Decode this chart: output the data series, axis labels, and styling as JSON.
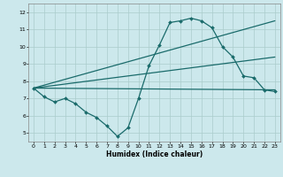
{
  "xlabel": "Humidex (Indice chaleur)",
  "bg_color": "#cce8ec",
  "grid_color": "#aacccc",
  "line_color": "#1a6b6b",
  "xlim": [
    -0.5,
    23.5
  ],
  "ylim": [
    4.5,
    12.5
  ],
  "xticks": [
    0,
    1,
    2,
    3,
    4,
    5,
    6,
    7,
    8,
    9,
    10,
    11,
    12,
    13,
    14,
    15,
    16,
    17,
    18,
    19,
    20,
    21,
    22,
    23
  ],
  "yticks": [
    5,
    6,
    7,
    8,
    9,
    10,
    11,
    12
  ],
  "main_line": {
    "x": [
      0,
      1,
      2,
      3,
      4,
      5,
      6,
      7,
      8,
      9,
      10,
      11,
      12,
      13,
      14,
      15,
      16,
      17,
      18,
      19,
      20,
      21,
      22,
      23
    ],
    "y": [
      7.6,
      7.1,
      6.8,
      7.0,
      6.7,
      6.2,
      5.9,
      5.4,
      4.8,
      5.3,
      7.0,
      8.9,
      10.1,
      11.4,
      11.5,
      11.65,
      11.5,
      11.1,
      10.0,
      9.4,
      8.3,
      8.2,
      7.5,
      7.4
    ]
  },
  "straight_lines": [
    {
      "x": [
        0,
        23
      ],
      "y": [
        7.6,
        7.5
      ]
    },
    {
      "x": [
        0,
        23
      ],
      "y": [
        7.6,
        9.4
      ]
    },
    {
      "x": [
        0,
        23
      ],
      "y": [
        7.6,
        11.5
      ]
    }
  ],
  "marker": "D",
  "markersize": 2.0,
  "linewidth": 0.9
}
